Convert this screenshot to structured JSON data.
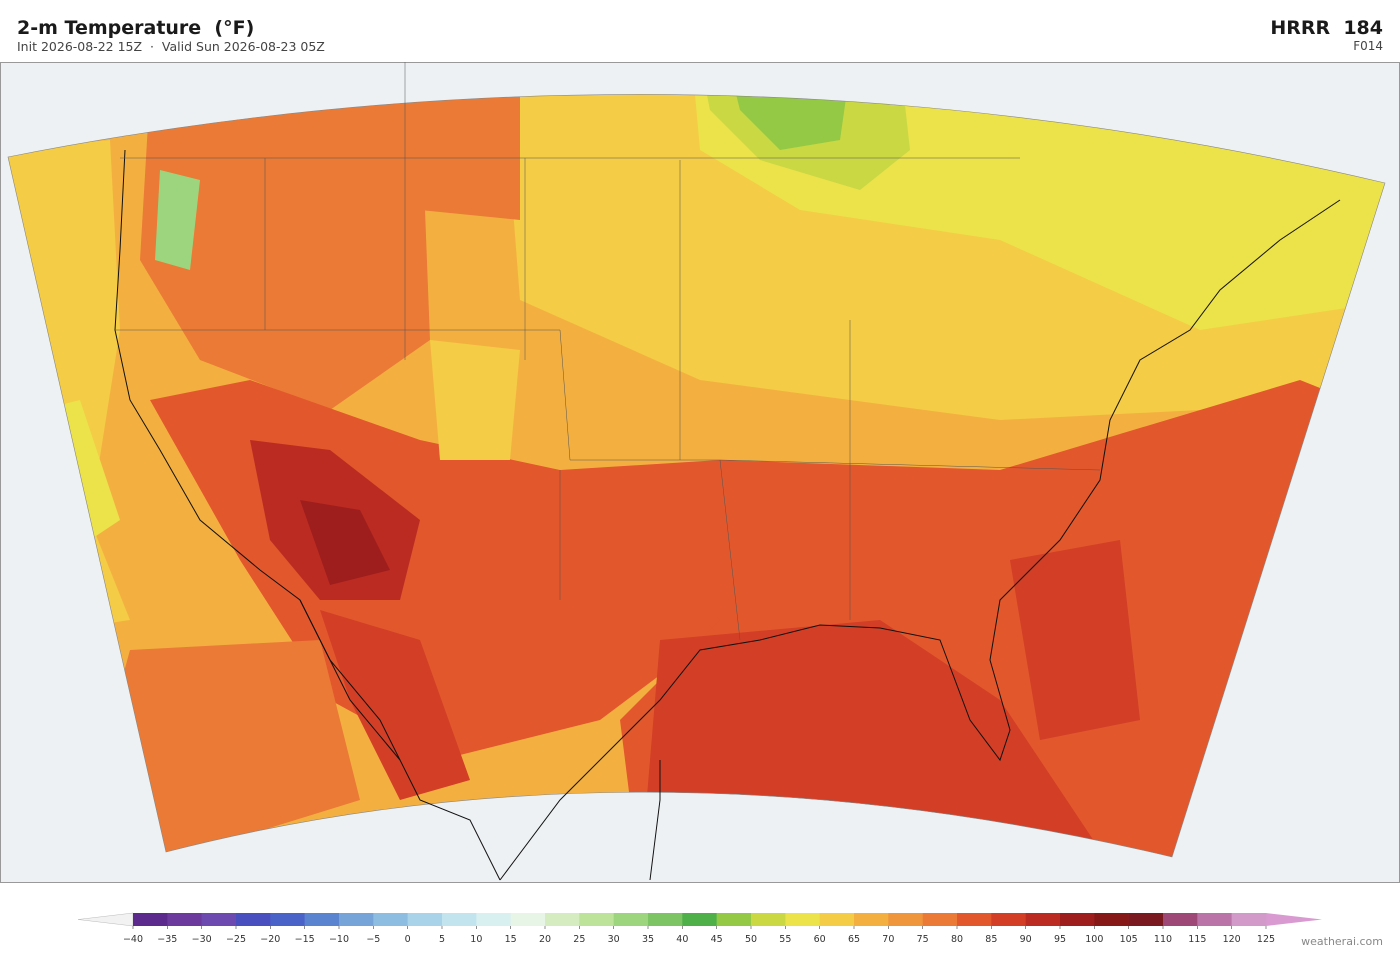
{
  "header": {
    "title": "2-m Temperature  (°F)",
    "subtitle": "Init 2026-08-22 15Z  ·  Valid Sun 2026-08-23 05Z",
    "model": "HRRR  184",
    "forecast_hour": "F014"
  },
  "colorbar": {
    "under_color": "#f2f2f2",
    "over_color": "#d89ad0",
    "colors": [
      "#5b2a8c",
      "#6b3a9c",
      "#6c4aaf",
      "#4a4fc0",
      "#4a63c8",
      "#5b84d0",
      "#76a3d8",
      "#8dbde0",
      "#a8d3e8",
      "#c2e4ee",
      "#d8f0f0",
      "#e6f5e6",
      "#d4ecc0",
      "#bde29a",
      "#9dd57e",
      "#7dc465",
      "#4fb04a",
      "#93c945",
      "#c9d843",
      "#ece24a",
      "#f4cc45",
      "#f3b040",
      "#ef963c",
      "#ea7a35",
      "#e2572c",
      "#d23e26",
      "#bb2b22",
      "#9e1e1e",
      "#871818",
      "#7a1a20",
      "#9e4878",
      "#bb74a8",
      "#d29ac8"
    ],
    "ticks": [
      {
        "value": -40,
        "label": "−40"
      },
      {
        "value": -35,
        "label": "−35"
      },
      {
        "value": -30,
        "label": "−30"
      },
      {
        "value": -25,
        "label": "−25"
      },
      {
        "value": -20,
        "label": "−20"
      },
      {
        "value": -15,
        "label": "−15"
      },
      {
        "value": -10,
        "label": "−10"
      },
      {
        "value": -5,
        "label": "−5"
      },
      0,
      5,
      10,
      15,
      20,
      25,
      30,
      35,
      40,
      45,
      50,
      55,
      60,
      65,
      70,
      75,
      80,
      85,
      90,
      95,
      100,
      105,
      110,
      115,
      120,
      125
    ]
  },
  "credit": "weatherai.com"
}
